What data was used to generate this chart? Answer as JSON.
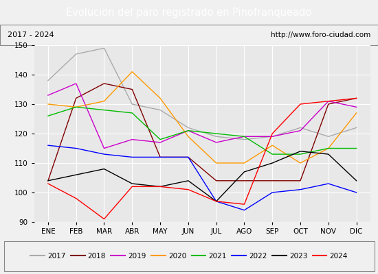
{
  "title": "Evolucion del paro registrado en Pinofranqueado",
  "subtitle_left": "2017 - 2024",
  "subtitle_right": "http://www.foro-ciudad.com",
  "months": [
    "ENE",
    "FEB",
    "MAR",
    "ABR",
    "MAY",
    "JUN",
    "JUL",
    "AGO",
    "SEP",
    "OCT",
    "NOV",
    "DIC"
  ],
  "ylim": [
    90,
    150
  ],
  "yticks": [
    90,
    100,
    110,
    120,
    130,
    140,
    150
  ],
  "series": {
    "2017": {
      "color": "#aaaaaa",
      "values": [
        138,
        147,
        149,
        130,
        128,
        122,
        119,
        118,
        119,
        122,
        119,
        122
      ]
    },
    "2018": {
      "color": "#800000",
      "values": [
        104,
        132,
        137,
        135,
        112,
        112,
        104,
        104,
        104,
        104,
        130,
        132
      ]
    },
    "2019": {
      "color": "#cc00cc",
      "values": [
        133,
        137,
        115,
        118,
        117,
        121,
        117,
        119,
        119,
        121,
        131,
        129
      ]
    },
    "2020": {
      "color": "#ff9900",
      "values": [
        130,
        129,
        131,
        141,
        132,
        119,
        110,
        110,
        116,
        110,
        115,
        127
      ]
    },
    "2021": {
      "color": "#00bb00",
      "values": [
        126,
        129,
        128,
        127,
        118,
        121,
        120,
        119,
        113,
        113,
        115,
        115
      ]
    },
    "2022": {
      "color": "#0000ff",
      "values": [
        116,
        115,
        113,
        112,
        112,
        112,
        97,
        94,
        100,
        101,
        103,
        100
      ]
    },
    "2023": {
      "color": "#000000",
      "values": [
        104,
        106,
        108,
        103,
        102,
        104,
        97,
        107,
        110,
        114,
        113,
        104
      ]
    },
    "2024": {
      "color": "#ff0000",
      "values": [
        103,
        98,
        91,
        102,
        102,
        101,
        97,
        96,
        120,
        130,
        131,
        132
      ]
    }
  },
  "background_color": "#f0f0f0",
  "plot_background": "#e8e8e8",
  "title_bg": "#4488cc",
  "title_color": "white",
  "grid_color": "white",
  "legend_bg": "#f0f0f0",
  "title_fontsize": 10.5,
  "tick_fontsize": 7.5,
  "legend_fontsize": 7.5
}
